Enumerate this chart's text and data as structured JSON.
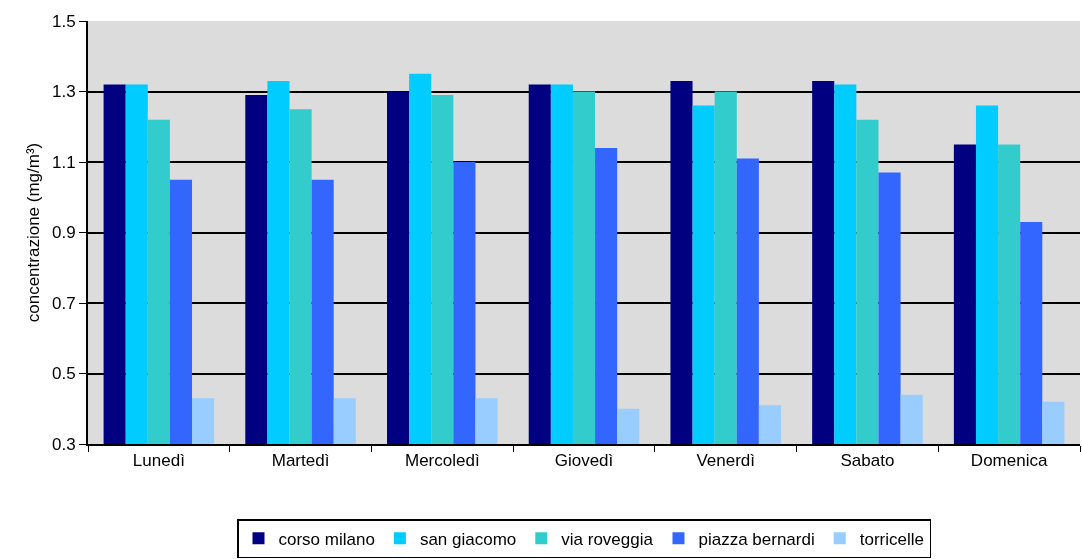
{
  "chart_data": {
    "type": "bar",
    "categories": [
      "Lunedì",
      "Martedì",
      "Mercoledì",
      "Giovedì",
      "Venerdì",
      "Sabato",
      "Domenica"
    ],
    "series": [
      {
        "name": "corso milano",
        "color": "#000080",
        "values": [
          1.32,
          1.29,
          1.3,
          1.32,
          1.33,
          1.33,
          1.15
        ]
      },
      {
        "name": "san giacomo",
        "color": "#00ccff",
        "values": [
          1.32,
          1.33,
          1.35,
          1.32,
          1.26,
          1.32,
          1.26
        ]
      },
      {
        "name": "via roveggia",
        "color": "#33cccc",
        "values": [
          1.22,
          1.25,
          1.29,
          1.3,
          1.3,
          1.22,
          1.15
        ]
      },
      {
        "name": "piazza bernardi",
        "color": "#3366ff",
        "values": [
          1.05,
          1.05,
          1.1,
          1.14,
          1.11,
          1.07,
          0.93
        ]
      },
      {
        "name": "torricelle",
        "color": "#99ccff",
        "values": [
          0.43,
          0.43,
          0.43,
          0.4,
          0.41,
          0.44,
          0.42
        ]
      }
    ],
    "ylabel": "concentrazione (mg/m³)",
    "ylim": [
      0.3,
      1.5
    ],
    "yticks": [
      0.3,
      0.5,
      0.7,
      0.9,
      1.1,
      1.3,
      1.5
    ],
    "grid": "y",
    "legend": "bottom"
  }
}
